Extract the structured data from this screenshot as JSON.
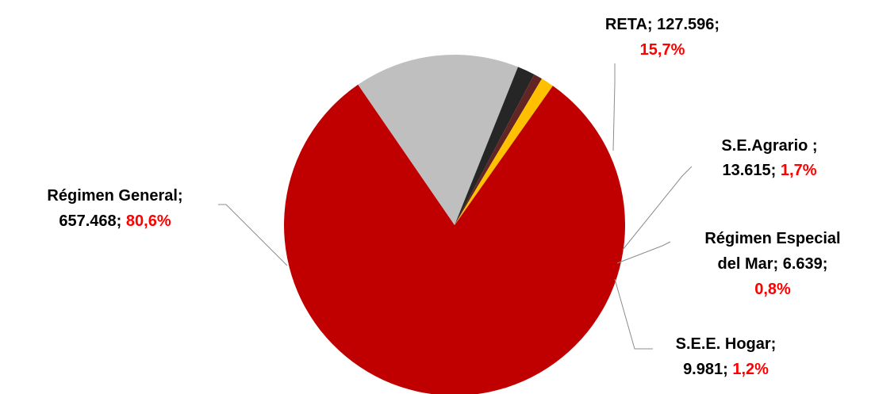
{
  "chart_data": {
    "type": "pie",
    "title": "",
    "slices": [
      {
        "name": "RETA",
        "value_text": "127.596",
        "value": 127596,
        "percent_text": "15,7%",
        "percent": 15.7,
        "color": "#bfbfbf"
      },
      {
        "name": "S.E.Agrario ",
        "value_text": "13.615",
        "value": 13615,
        "percent_text": "1,7%",
        "percent": 1.7,
        "color": "#262626"
      },
      {
        "name": "Régimen Especial del Mar",
        "value_text": "6.639",
        "value": 6639,
        "percent_text": "0,8%",
        "percent": 0.8,
        "color": "#632523"
      },
      {
        "name": "S.E.E. Hogar",
        "value_text": "9.981",
        "value": 9981,
        "percent_text": "1,2%",
        "percent": 1.2,
        "color": "#ffc000"
      },
      {
        "name": "Régimen General",
        "value_text": "657.468",
        "value": 657468,
        "percent_text": "80,6%",
        "percent": 80.6,
        "color": "#c00000"
      }
    ],
    "label_color": "#000000",
    "percent_color": "#ff0000",
    "leader_color": "#8c8c8c",
    "legend": "none"
  },
  "labels": {
    "reta": {
      "line1": "RETA; 127.596;",
      "pct": "15,7%"
    },
    "agrario": {
      "line1": "S.E.Agrario ;",
      "value": "13.615;",
      "pct": "1,7%"
    },
    "mar": {
      "line1": "Régimen Especial",
      "line2": "del Mar; 6.639;",
      "pct": "0,8%"
    },
    "hogar": {
      "line1": "S.E.E. Hogar;",
      "value": "9.981;",
      "pct": "1,2%"
    },
    "general": {
      "line1": "Régimen General;",
      "value": "657.468;",
      "pct": "80,6%"
    }
  }
}
